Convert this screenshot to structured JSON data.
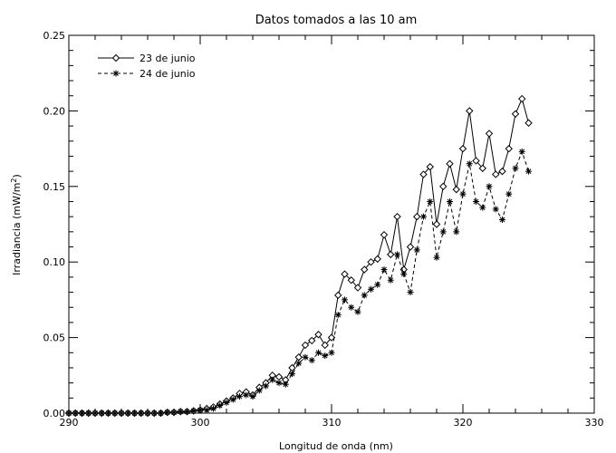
{
  "chart_data": {
    "type": "line",
    "title": "Datos tomados a las 10 am",
    "xlabel": "Longitud de onda (nm)",
    "ylabel_main": "Irradiancia (mW/m",
    "ylabel_sup": "2",
    "ylabel_tail": ")",
    "xlim": [
      290,
      330
    ],
    "ylim": [
      0,
      0.25
    ],
    "xticks": [
      290,
      300,
      310,
      320,
      330
    ],
    "xtick_labels": [
      "290",
      "300",
      "310",
      "320",
      "330"
    ],
    "yticks": [
      0.0,
      0.05,
      0.1,
      0.15,
      0.2,
      0.25
    ],
    "ytick_labels": [
      "0.00",
      "0.05",
      "0.10",
      "0.15",
      "0.20",
      "0.25"
    ],
    "grid": false,
    "legend_position": "top-left",
    "series": [
      {
        "name": "23 de junio",
        "marker": "diamond",
        "line_style": "solid",
        "x": [
          290.0,
          290.5,
          291.0,
          291.5,
          292.0,
          292.5,
          293.0,
          293.5,
          294.0,
          294.5,
          295.0,
          295.5,
          296.0,
          296.5,
          297.0,
          297.5,
          298.0,
          298.5,
          299.0,
          299.5,
          300.0,
          300.5,
          301.0,
          301.5,
          302.0,
          302.5,
          303.0,
          303.5,
          304.0,
          304.5,
          305.0,
          305.5,
          306.0,
          306.5,
          307.0,
          307.5,
          308.0,
          308.5,
          309.0,
          309.5,
          310.0,
          310.5,
          311.0,
          311.5,
          312.0,
          312.5,
          313.0,
          313.5,
          314.0,
          314.5,
          315.0,
          315.5,
          316.0,
          316.5,
          317.0,
          317.5,
          318.0,
          318.5,
          319.0,
          319.5,
          320.0,
          320.5,
          321.0,
          321.5,
          322.0,
          322.5,
          323.0,
          323.5,
          324.0,
          324.5,
          325.0
        ],
        "y": [
          0.0,
          0.0,
          0.0,
          0.0,
          0.0,
          0.0,
          0.0,
          0.0,
          0.0,
          0.0,
          0.0,
          0.0,
          0.0,
          0.0,
          0.0,
          0.0005,
          0.0005,
          0.001,
          0.001,
          0.0015,
          0.002,
          0.003,
          0.004,
          0.006,
          0.008,
          0.01,
          0.013,
          0.014,
          0.012,
          0.017,
          0.02,
          0.025,
          0.024,
          0.022,
          0.03,
          0.037,
          0.045,
          0.048,
          0.052,
          0.045,
          0.05,
          0.078,
          0.092,
          0.088,
          0.083,
          0.095,
          0.1,
          0.102,
          0.118,
          0.105,
          0.13,
          0.095,
          0.11,
          0.13,
          0.158,
          0.163,
          0.125,
          0.15,
          0.165,
          0.148,
          0.175,
          0.2,
          0.167,
          0.162,
          0.185,
          0.158,
          0.16,
          0.175,
          0.198,
          0.208,
          0.192
        ]
      },
      {
        "name": "24 de junio",
        "marker": "asterisk",
        "line_style": "dashed",
        "x": [
          290.0,
          290.5,
          291.0,
          291.5,
          292.0,
          292.5,
          293.0,
          293.5,
          294.0,
          294.5,
          295.0,
          295.5,
          296.0,
          296.5,
          297.0,
          297.5,
          298.0,
          298.5,
          299.0,
          299.5,
          300.0,
          300.5,
          301.0,
          301.5,
          302.0,
          302.5,
          303.0,
          303.5,
          304.0,
          304.5,
          305.0,
          305.5,
          306.0,
          306.5,
          307.0,
          307.5,
          308.0,
          308.5,
          309.0,
          309.5,
          310.0,
          310.5,
          311.0,
          311.5,
          312.0,
          312.5,
          313.0,
          313.5,
          314.0,
          314.5,
          315.0,
          315.5,
          316.0,
          316.5,
          317.0,
          317.5,
          318.0,
          318.5,
          319.0,
          319.5,
          320.0,
          320.5,
          321.0,
          321.5,
          322.0,
          322.5,
          323.0,
          323.5,
          324.0,
          324.5,
          325.0
        ],
        "y": [
          0.0,
          0.0,
          0.0,
          0.0,
          0.0,
          0.0,
          0.0,
          0.0,
          0.0,
          0.0,
          0.0,
          0.0,
          0.0,
          0.0,
          0.0,
          0.0005,
          0.0005,
          0.001,
          0.001,
          0.0015,
          0.002,
          0.002,
          0.003,
          0.005,
          0.007,
          0.009,
          0.011,
          0.012,
          0.011,
          0.015,
          0.018,
          0.022,
          0.02,
          0.019,
          0.026,
          0.033,
          0.037,
          0.035,
          0.04,
          0.038,
          0.04,
          0.065,
          0.075,
          0.07,
          0.067,
          0.078,
          0.082,
          0.085,
          0.095,
          0.088,
          0.105,
          0.092,
          0.08,
          0.108,
          0.13,
          0.14,
          0.103,
          0.12,
          0.14,
          0.12,
          0.145,
          0.165,
          0.14,
          0.136,
          0.15,
          0.135,
          0.128,
          0.145,
          0.162,
          0.173,
          0.16
        ]
      }
    ]
  }
}
